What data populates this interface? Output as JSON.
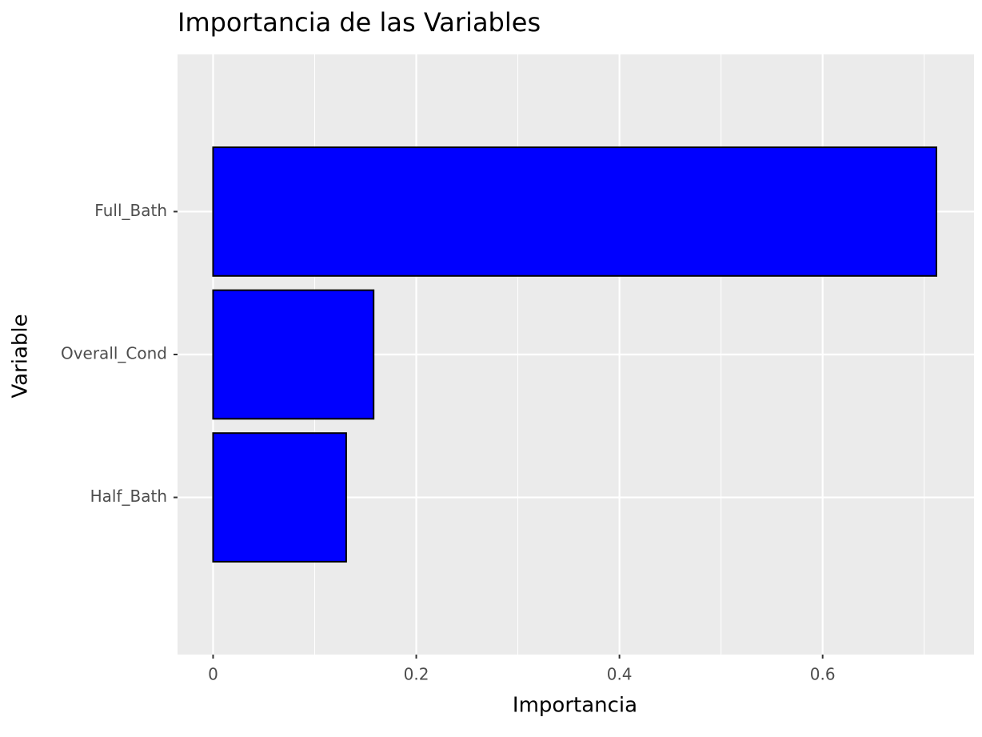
{
  "chart_data": {
    "type": "barh",
    "title": "Importancia de las Variables",
    "x_label": "Importancia",
    "y_label": "Variable",
    "categories": [
      "Full_Bath",
      "Overall_Cond",
      "Half_Bath"
    ],
    "values": [
      0.712,
      0.158,
      0.131
    ],
    "color": "#0000ff",
    "edgecolor": "#000000",
    "xlim": [
      -0.035,
      0.749
    ],
    "xticks": [
      0,
      0.2,
      0.4,
      0.6
    ],
    "xminor": [
      0.1,
      0.3,
      0.5,
      0.7
    ],
    "grid": true
  }
}
